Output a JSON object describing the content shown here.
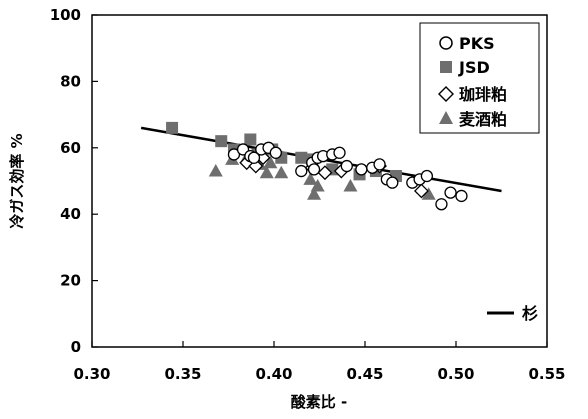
{
  "chart_data": {
    "type": "scatter",
    "title": "",
    "xlabel": "酸素比 -",
    "ylabel": "冷ガス効率 %",
    "xlim": [
      0.3,
      0.55
    ],
    "ylim": [
      0,
      100
    ],
    "xticks": [
      0.3,
      0.35,
      0.4,
      0.45,
      0.5,
      0.55
    ],
    "xtick_labels": [
      "0.30",
      "0.35",
      "0.40",
      "0.45",
      "0.50",
      "0.55"
    ],
    "yticks": [
      0,
      20,
      40,
      60,
      80,
      100
    ],
    "ytick_labels": [
      "0",
      "20",
      "40",
      "60",
      "80",
      "100"
    ],
    "grid": false,
    "legend_position": "top-right",
    "series": [
      {
        "name": "PKS",
        "marker": "circle-open",
        "color": "#000000",
        "points": [
          [
            0.378,
            58.0
          ],
          [
            0.383,
            59.5
          ],
          [
            0.387,
            57.5
          ],
          [
            0.389,
            57.0
          ],
          [
            0.393,
            59.5
          ],
          [
            0.397,
            60.0
          ],
          [
            0.401,
            58.5
          ],
          [
            0.415,
            53.0
          ],
          [
            0.421,
            55.5
          ],
          [
            0.422,
            53.5
          ],
          [
            0.424,
            57.0
          ],
          [
            0.427,
            57.5
          ],
          [
            0.432,
            58.0
          ],
          [
            0.436,
            58.5
          ],
          [
            0.44,
            54.5
          ],
          [
            0.448,
            53.5
          ],
          [
            0.454,
            54.0
          ],
          [
            0.458,
            55.0
          ],
          [
            0.462,
            50.5
          ],
          [
            0.465,
            49.5
          ],
          [
            0.476,
            49.5
          ],
          [
            0.48,
            50.5
          ],
          [
            0.484,
            51.5
          ],
          [
            0.492,
            43.0
          ],
          [
            0.497,
            46.5
          ],
          [
            0.503,
            45.5
          ]
        ]
      },
      {
        "name": "JSD",
        "marker": "square-filled",
        "color": "#6e6e6e",
        "points": [
          [
            0.344,
            66.0
          ],
          [
            0.371,
            62.0
          ],
          [
            0.378,
            59.5
          ],
          [
            0.387,
            62.5
          ],
          [
            0.391,
            58.0
          ],
          [
            0.399,
            59.5
          ],
          [
            0.404,
            57.0
          ],
          [
            0.415,
            57.0
          ],
          [
            0.421,
            56.5
          ],
          [
            0.432,
            53.5
          ],
          [
            0.447,
            52.0
          ],
          [
            0.456,
            53.0
          ],
          [
            0.467,
            51.5
          ]
        ]
      },
      {
        "name": "珈琲粕",
        "marker": "diamond-open",
        "color": "#000000",
        "points": [
          [
            0.385,
            55.5
          ],
          [
            0.39,
            54.5
          ],
          [
            0.394,
            57.0
          ],
          [
            0.421,
            54.0
          ],
          [
            0.428,
            52.5
          ],
          [
            0.437,
            53.0
          ],
          [
            0.458,
            54.5
          ],
          [
            0.481,
            47.0
          ]
        ]
      },
      {
        "name": "麦酒粕",
        "marker": "triangle-filled",
        "color": "#6e6e6e",
        "points": [
          [
            0.368,
            53.0
          ],
          [
            0.377,
            56.5
          ],
          [
            0.385,
            57.0
          ],
          [
            0.392,
            55.0
          ],
          [
            0.396,
            52.5
          ],
          [
            0.398,
            55.5
          ],
          [
            0.404,
            52.5
          ],
          [
            0.42,
            50.5
          ],
          [
            0.422,
            46.0
          ],
          [
            0.424,
            48.5
          ],
          [
            0.442,
            48.5
          ],
          [
            0.485,
            46.0
          ]
        ]
      }
    ],
    "fit_line": {
      "name": "杉",
      "from": [
        0.327,
        66.0
      ],
      "to": [
        0.525,
        47.0
      ]
    }
  }
}
